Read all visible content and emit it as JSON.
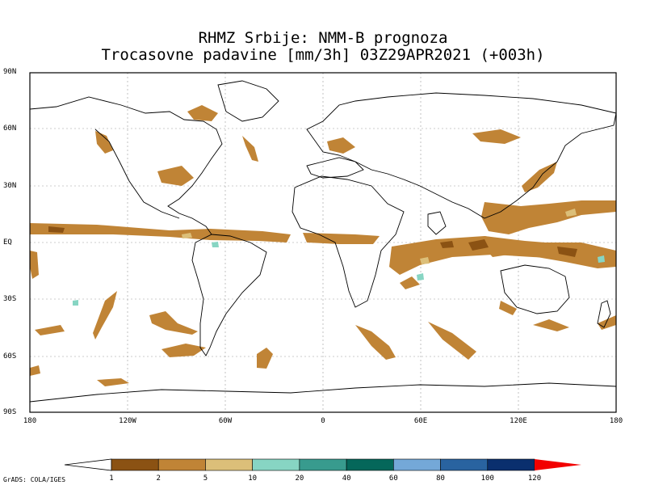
{
  "title": {
    "line1": "RHMZ Srbije: NMM-B prognoza",
    "line2": "Trocasovne padavine [mm/3h] 03Z29APR2021 (+003h)"
  },
  "axes": {
    "lat_labels": [
      "90N",
      "60N",
      "30N",
      "EQ",
      "30S",
      "60S",
      "90S"
    ],
    "lon_labels": [
      "180",
      "120W",
      "60W",
      "0",
      "60E",
      "120E",
      "180"
    ]
  },
  "colorbar": {
    "labels": [
      "1",
      "2",
      "5",
      "10",
      "20",
      "40",
      "60",
      "80",
      "100",
      "120"
    ],
    "colors": [
      "#ffffff",
      "#8b5213",
      "#c08436",
      "#dcbf79",
      "#87d5c3",
      "#389b8e",
      "#05675a",
      "#74a8d8",
      "#2963a0",
      "#0a2f6e",
      "#f20000"
    ]
  },
  "credit": "GrADS: COLA/IGES",
  "colors": {
    "precip_low": "#c08436",
    "precip_dark": "#8b5213",
    "precip_light": "#dcbf79",
    "precip_teal": "#87d5c3",
    "coast": "#000000",
    "grid": "#9a9a9a"
  }
}
